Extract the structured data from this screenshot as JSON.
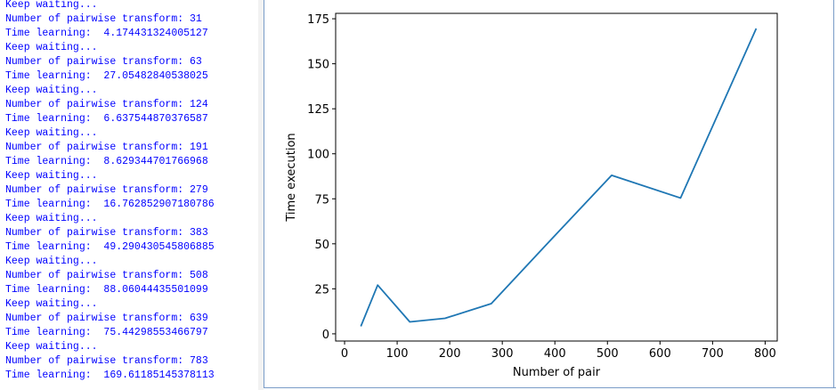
{
  "console": {
    "text_color": "#0000ff",
    "lines": [
      "Keep waiting...",
      "Number of pairwise transform: 31",
      "Time learning:  4.174431324005127",
      "Keep waiting...",
      "Number of pairwise transform: 63",
      "Time learning:  27.05482840538025",
      "Keep waiting...",
      "Number of pairwise transform: 124",
      "Time learning:  6.637544870376587",
      "Keep waiting...",
      "Number of pairwise transform: 191",
      "Time learning:  8.629344701766968",
      "Keep waiting...",
      "Number of pairwise transform: 279",
      "Time learning:  16.762852907180786",
      "Keep waiting...",
      "Number of pairwise transform: 383",
      "Time learning:  49.290430545806885",
      "Keep waiting...",
      "Number of pairwise transform: 508",
      "Time learning:  88.06044435501099",
      "Keep waiting...",
      "Number of pairwise transform: 639",
      "Time learning:  75.44298553466797",
      "Keep waiting...",
      "Number of pairwise transform: 783",
      "Time learning:  169.61185145378113"
    ]
  },
  "chart_data": {
    "type": "line",
    "title": "",
    "xlabel": "Number of pair",
    "ylabel": "Time execution",
    "xlim": [
      -17,
      823
    ],
    "ylim": [
      -4,
      178
    ],
    "xticks": [
      0,
      100,
      200,
      300,
      400,
      500,
      600,
      700,
      800
    ],
    "yticks": [
      0,
      25,
      50,
      75,
      100,
      125,
      150,
      175
    ],
    "grid": false,
    "series": [
      {
        "color": "#1f77b4",
        "x": [
          31,
          63,
          124,
          191,
          279,
          383,
          508,
          639,
          783
        ],
        "y": [
          4.174431324005127,
          27.05482840538025,
          6.637544870376587,
          8.629344701766968,
          16.762852907180786,
          49.290430545806885,
          88.06044435501099,
          75.44298553466797,
          169.61185145378113
        ]
      }
    ]
  }
}
